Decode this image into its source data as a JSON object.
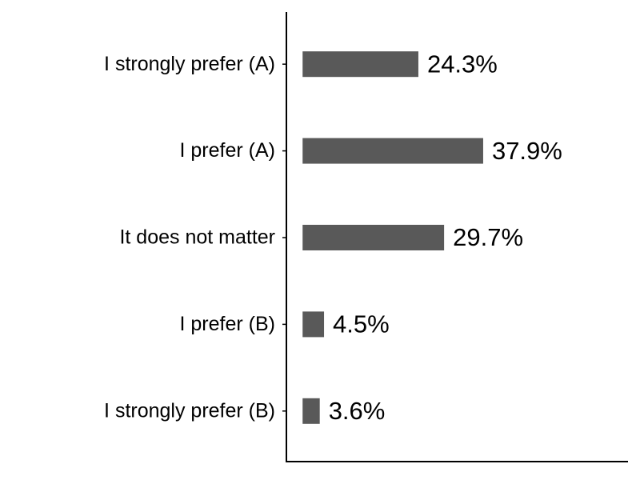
{
  "chart_data": {
    "type": "hbar",
    "categories": [
      "I strongly prefer (A)",
      "I prefer (A)",
      "It does not matter",
      "I prefer (B)",
      "I strongly prefer (B)"
    ],
    "values": [
      24.3,
      37.9,
      29.7,
      4.5,
      3.6
    ],
    "value_labels": [
      "24.3%",
      "37.9%",
      "29.7%",
      "4.5%",
      "3.6%"
    ],
    "color": "#595959",
    "xlim": [
      -3.4,
      68.3
    ]
  }
}
